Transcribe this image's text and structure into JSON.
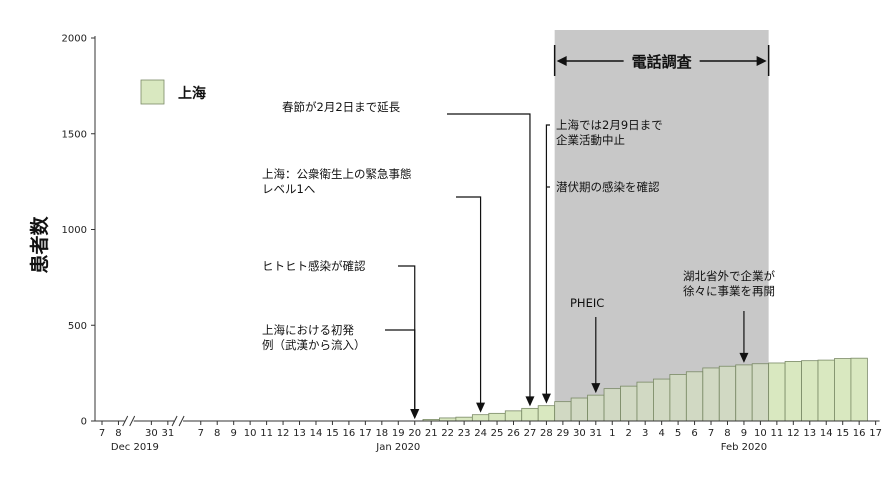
{
  "chart_data": {
    "type": "bar",
    "ylabel": "患者数",
    "ylim": [
      0,
      2000
    ],
    "yticks": [
      0,
      500,
      1000,
      1500,
      2000
    ],
    "legend": {
      "label": "上海",
      "color": "#d9e8c0",
      "position": "top-left"
    },
    "colors": {
      "bar": "#d9e8c0",
      "bar_border": "#7a8a66",
      "band": "#c8c8c8",
      "axis": "#333333"
    },
    "x_groups": [
      {
        "label": "Dec 2019",
        "days": [
          "7",
          "8",
          "30",
          "31"
        ]
      },
      {
        "label": "Jan 2020",
        "days": [
          "7",
          "8",
          "9",
          "10",
          "11",
          "12",
          "13",
          "14",
          "15",
          "16",
          "17",
          "18",
          "19",
          "20",
          "21",
          "22",
          "23",
          "24",
          "25",
          "26",
          "27",
          "28",
          "29",
          "30",
          "31"
        ]
      },
      {
        "label": "Feb 2020",
        "days": [
          "1",
          "2",
          "3",
          "4",
          "5",
          "6",
          "7",
          "8",
          "9",
          "10",
          "11",
          "12",
          "13",
          "14",
          "15",
          "16",
          "17"
        ]
      }
    ],
    "axis_breaks": [
      "after Dec 8",
      "after Dec 31"
    ],
    "categories": [
      "Jan 21",
      "Jan 22",
      "Jan 23",
      "Jan 24",
      "Jan 25",
      "Jan 26",
      "Jan 27",
      "Jan 28",
      "Jan 29",
      "Jan 30",
      "Jan 31",
      "Feb 1",
      "Feb 2",
      "Feb 3",
      "Feb 4",
      "Feb 5",
      "Feb 6",
      "Feb 7",
      "Feb 8",
      "Feb 9",
      "Feb 10",
      "Feb 11",
      "Feb 12",
      "Feb 13",
      "Feb 14",
      "Feb 15",
      "Feb 16"
    ],
    "values": [
      8,
      16,
      20,
      33,
      40,
      53,
      66,
      80,
      101,
      120,
      135,
      169,
      182,
      203,
      219,
      243,
      257,
      277,
      286,
      293,
      299,
      303,
      311,
      315,
      318,
      326,
      328
    ],
    "survey_band": {
      "label": "電話調査",
      "from": "Jan 28",
      "to": "Feb 10"
    },
    "annotations": [
      {
        "lines": [
          "上海における初発",
          "例（武漢から流入）"
        ],
        "date": "Jan 20"
      },
      {
        "lines": [
          "ヒトヒト感染が確認"
        ],
        "date": "Jan 20"
      },
      {
        "lines": [
          "上海：公衆衛生上の緊急事態",
          "レベル1へ"
        ],
        "date": "Jan 24"
      },
      {
        "lines": [
          "春節が2月2日まで延長"
        ],
        "date": "Jan 27"
      },
      {
        "lines": [
          "上海では2月9日まで",
          "企業活動中止"
        ],
        "date": "Jan 28"
      },
      {
        "lines": [
          "潜伏期の感染を確認"
        ],
        "date": "Jan 28"
      },
      {
        "lines": [
          "PHEIC"
        ],
        "date": "Jan 31"
      },
      {
        "lines": [
          "湖北省外で企業が",
          "徐々に事業を再開"
        ],
        "date": "Feb 9"
      }
    ]
  }
}
